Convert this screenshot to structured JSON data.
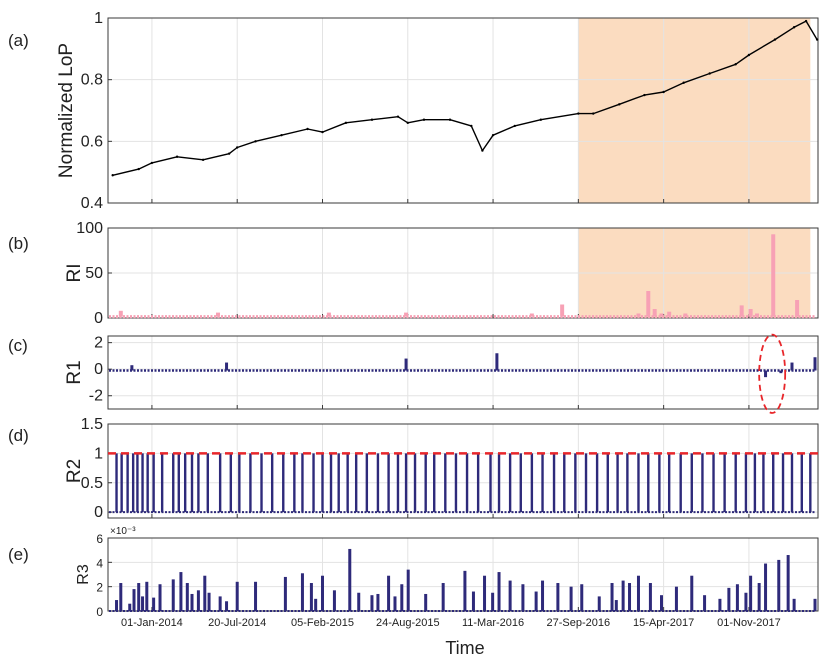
{
  "figure": {
    "xlabel": "Time",
    "x_tick_labels": [
      "01-Jan-2014",
      "20-Jul-2014",
      "05-Feb-2015",
      "24-Aug-2015",
      "11-Mar-2016",
      "27-Sep-2016",
      "15-Apr-2017",
      "01-Nov-2017"
    ],
    "colors": {
      "loP": "#000000",
      "ri": "#f7a1b5",
      "bars": "#2e2a7a",
      "shade": "#fbdcc0",
      "threshold": "#e8262a",
      "highlight": "#e8262a"
    }
  },
  "chart_data": [
    {
      "panel": "(a)",
      "type": "line",
      "ylabel": "Normalized LoP",
      "ylim": [
        0.4,
        1.0
      ],
      "yticks": [
        "0.4",
        "0.6",
        "0.8",
        "1"
      ],
      "grid": true,
      "shaded_region": {
        "x_start": "2016-09-27",
        "x_end": "2018-03-25"
      },
      "x": [
        "2013-10-01",
        "2013-12-01",
        "2014-01-01",
        "2014-03-01",
        "2014-05-01",
        "2014-07-01",
        "2014-07-20",
        "2014-09-01",
        "2014-11-01",
        "2015-01-01",
        "2015-02-05",
        "2015-04-01",
        "2015-06-01",
        "2015-08-01",
        "2015-08-24",
        "2015-10-01",
        "2015-12-01",
        "2016-01-20",
        "2016-02-15",
        "2016-03-11",
        "2016-05-01",
        "2016-07-01",
        "2016-09-27",
        "2016-11-01",
        "2017-01-01",
        "2017-03-01",
        "2017-04-15",
        "2017-06-01",
        "2017-08-01",
        "2017-10-01",
        "2017-11-01",
        "2018-01-01",
        "2018-02-15",
        "2018-03-15",
        "2018-04-10"
      ],
      "y": [
        0.49,
        0.51,
        0.53,
        0.55,
        0.54,
        0.56,
        0.58,
        0.6,
        0.62,
        0.64,
        0.63,
        0.66,
        0.67,
        0.68,
        0.66,
        0.67,
        0.67,
        0.65,
        0.57,
        0.62,
        0.65,
        0.67,
        0.69,
        0.69,
        0.72,
        0.75,
        0.76,
        0.79,
        0.82,
        0.85,
        0.88,
        0.93,
        0.97,
        0.99,
        0.93
      ]
    },
    {
      "panel": "(b)",
      "type": "bar",
      "ylabel": "RI",
      "ylim": [
        0,
        100
      ],
      "yticks": [
        "0",
        "50",
        "100"
      ],
      "grid": true,
      "shaded_region": {
        "x_start": "2016-09-27",
        "x_end": "2018-03-25"
      },
      "baseline": 1.5,
      "x": [
        "2013-10-20",
        "2014-06-05",
        "2015-02-20",
        "2015-08-20",
        "2016-06-10",
        "2016-08-20",
        "2017-02-15",
        "2017-03-10",
        "2017-03-25",
        "2017-04-10",
        "2017-04-28",
        "2017-06-05",
        "2017-10-15",
        "2017-11-05",
        "2017-11-20",
        "2017-12-28",
        "2018-02-22"
      ],
      "values": [
        8,
        6,
        6,
        6,
        5,
        15,
        5,
        30,
        10,
        5,
        7,
        5,
        14,
        10,
        5,
        93,
        20
      ]
    },
    {
      "panel": "(c)",
      "type": "bar",
      "ylabel": "R1",
      "ylim": [
        -3,
        2.5
      ],
      "yticks": [
        "-2",
        "0",
        "2"
      ],
      "grid": true,
      "highlight": {
        "shape": "ellipse",
        "x_start": "2017-11-25",
        "x_end": "2018-01-25",
        "y_min": -3,
        "y_max": 2.3
      },
      "baseline": -0.1,
      "x": [
        "2013-11-15",
        "2014-06-25",
        "2015-08-20",
        "2016-03-20",
        "2017-12-10",
        "2018-01-15",
        "2018-02-10",
        "2018-04-05"
      ],
      "values": [
        0.3,
        0.5,
        0.8,
        1.2,
        -0.6,
        -0.3,
        0.5,
        0.9
      ]
    },
    {
      "panel": "(d)",
      "type": "bar",
      "ylabel": "R2",
      "ylim": [
        -0.1,
        1.5
      ],
      "yticks": [
        "0",
        "0.5",
        "1",
        "1.5"
      ],
      "grid": true,
      "threshold": 1,
      "x": [
        "2013-10-10",
        "2013-10-22",
        "2013-11-05",
        "2013-11-18",
        "2013-11-28",
        "2013-12-10",
        "2013-12-22",
        "2014-01-05",
        "2014-01-25",
        "2014-02-20",
        "2014-03-05",
        "2014-03-20",
        "2014-04-05",
        "2014-04-20",
        "2014-05-12",
        "2014-06-10",
        "2014-07-05",
        "2014-07-25",
        "2014-08-20",
        "2014-09-15",
        "2014-10-10",
        "2014-11-05",
        "2014-12-01",
        "2014-12-20",
        "2015-01-15",
        "2015-02-05",
        "2015-02-25",
        "2015-03-15",
        "2015-04-05",
        "2015-04-25",
        "2015-05-20",
        "2015-06-15",
        "2015-07-10",
        "2015-08-01",
        "2015-08-20",
        "2015-09-10",
        "2015-10-05",
        "2015-10-25",
        "2015-11-20",
        "2015-12-15",
        "2016-01-10",
        "2016-02-05",
        "2016-03-05",
        "2016-03-25",
        "2016-04-20",
        "2016-05-15",
        "2016-06-10",
        "2016-07-05",
        "2016-08-01",
        "2016-08-25",
        "2016-09-20",
        "2016-10-15",
        "2016-11-10",
        "2016-12-05",
        "2016-12-28",
        "2017-01-20",
        "2017-02-15",
        "2017-03-10",
        "2017-04-05",
        "2017-04-28",
        "2017-05-25",
        "2017-06-20",
        "2017-07-15",
        "2017-08-10",
        "2017-09-05",
        "2017-10-01",
        "2017-10-25",
        "2017-11-15",
        "2017-12-05",
        "2017-12-28",
        "2018-01-20",
        "2018-02-10",
        "2018-03-05",
        "2018-03-25"
      ],
      "values": [
        1,
        1,
        1,
        1,
        1,
        1,
        1,
        1,
        1,
        1,
        1,
        1,
        1,
        1,
        1,
        1,
        1,
        1,
        1,
        1,
        1,
        1,
        1,
        1,
        1,
        1,
        1,
        1,
        1,
        1,
        1,
        1,
        1,
        1,
        1,
        1,
        1,
        1,
        1,
        1,
        1,
        1,
        1,
        1,
        1,
        1,
        1,
        1,
        1,
        1,
        1,
        1,
        1,
        1,
        1,
        1,
        1,
        1,
        1,
        1,
        1,
        1,
        1,
        1,
        1,
        1,
        1,
        1,
        1,
        1,
        1,
        1,
        1,
        1
      ]
    },
    {
      "panel": "(e)",
      "type": "bar",
      "ylabel": "R3",
      "ylim": [
        0,
        6
      ],
      "yticks": [
        "0",
        "2",
        "4",
        "6"
      ],
      "multiplier": "×10⁻³",
      "grid": true,
      "x": [
        "2013-10-10",
        "2013-10-20",
        "2013-11-10",
        "2013-11-20",
        "2013-12-01",
        "2013-12-10",
        "2013-12-20",
        "2014-01-05",
        "2014-01-20",
        "2014-02-20",
        "2014-03-10",
        "2014-03-25",
        "2014-04-05",
        "2014-04-20",
        "2014-05-05",
        "2014-05-15",
        "2014-06-10",
        "2014-06-25",
        "2014-07-20",
        "2014-09-01",
        "2014-11-10",
        "2014-12-20",
        "2015-01-10",
        "2015-01-20",
        "2015-02-05",
        "2015-03-05",
        "2015-04-10",
        "2015-05-01",
        "2015-06-01",
        "2015-06-15",
        "2015-07-10",
        "2015-07-25",
        "2015-08-10",
        "2015-08-25",
        "2015-10-05",
        "2015-11-15",
        "2016-01-05",
        "2016-01-25",
        "2016-02-20",
        "2016-03-10",
        "2016-03-25",
        "2016-04-20",
        "2016-05-20",
        "2016-06-20",
        "2016-07-05",
        "2016-08-10",
        "2016-09-10",
        "2016-10-05",
        "2016-11-15",
        "2016-12-15",
        "2016-12-25",
        "2017-01-10",
        "2017-01-25",
        "2017-02-15",
        "2017-03-15",
        "2017-04-10",
        "2017-05-15",
        "2017-06-20",
        "2017-07-20",
        "2017-08-25",
        "2017-09-15",
        "2017-10-05",
        "2017-10-25",
        "2017-11-05",
        "2017-11-25",
        "2017-12-10",
        "2018-01-10",
        "2018-02-01",
        "2018-02-15",
        "2018-04-05"
      ],
      "values": [
        0.9,
        2.3,
        0.6,
        1.8,
        2.3,
        1.2,
        2.4,
        1.1,
        2.2,
        2.6,
        3.2,
        2.3,
        1.4,
        1.7,
        2.9,
        1.5,
        1.2,
        0.8,
        2.4,
        2.4,
        2.8,
        3.1,
        2.3,
        1.0,
        2.9,
        1.7,
        5.1,
        1.5,
        1.3,
        1.4,
        2.9,
        1.2,
        2.2,
        3.4,
        1.4,
        2.3,
        3.3,
        1.6,
        2.9,
        1.5,
        3.2,
        2.5,
        2.2,
        1.6,
        2.5,
        2.3,
        2.0,
        2.2,
        1.2,
        2.3,
        0.9,
        2.5,
        2.3,
        2.9,
        2.3,
        1.3,
        2.0,
        2.9,
        1.3,
        1.0,
        1.9,
        2.2,
        1.5,
        2.9,
        2.3,
        3.9,
        4.2,
        4.6,
        1.0,
        1.0
      ]
    }
  ]
}
